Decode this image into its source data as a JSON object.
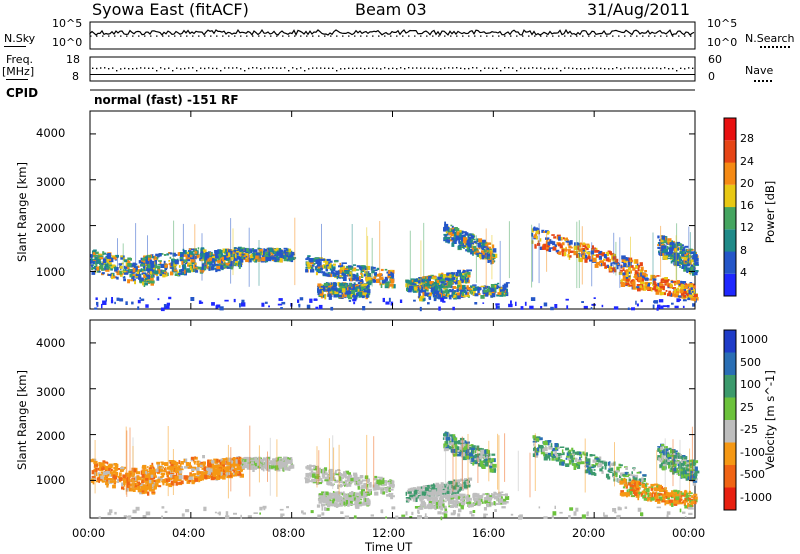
{
  "header": {
    "station": "Syowa East (fitACF)",
    "beam": "Beam 03",
    "date": "31/Aug/2011"
  },
  "noise_panel": {
    "left_label": "N.Sky",
    "right_label": "N.Search",
    "left_ticks": [
      "10^5",
      "10^0"
    ],
    "right_ticks": [
      "10^5",
      "10^0"
    ]
  },
  "freq_panel": {
    "left_label_line1": "Freq.",
    "left_label_line2": "[MHz]",
    "right_label": "Nave",
    "left_ticks": [
      "18",
      "8"
    ],
    "right_ticks": [
      "60",
      "0"
    ]
  },
  "cpid_panel": {
    "label": "CPID",
    "text": "normal (fast) -151 RF"
  },
  "chart_data": [
    {
      "type": "heatmap",
      "panel": "power",
      "ylabel": "Slant Range [km]",
      "yticks": [
        "1000",
        "2000",
        "3000",
        "4000"
      ],
      "ylim": [
        180,
        4500
      ],
      "xlim": [
        0,
        24
      ],
      "colorbar_label": "Power [dB]",
      "colorbar_ticks": [
        "4",
        "8",
        "12",
        "16",
        "20",
        "24",
        "28"
      ],
      "colorbar_colors": [
        "#1f28ff",
        "#2456c8",
        "#1f8a88",
        "#45a560",
        "#e8c814",
        "#f58a14",
        "#e64516",
        "#e81010"
      ]
    },
    {
      "type": "heatmap",
      "panel": "velocity",
      "ylabel": "Slant Range [km]",
      "yticks": [
        "1000",
        "2000",
        "3000",
        "4000"
      ],
      "ylim": [
        180,
        4500
      ],
      "xlim": [
        0,
        24
      ],
      "colorbar_label": "Velocity [m s^-1]",
      "colorbar_ticks": [
        "1000",
        "500",
        "100",
        "25",
        "-25",
        "-100",
        "-500",
        "-1000"
      ],
      "colorbar_colors": [
        "#1f3cc8",
        "#2a6eb4",
        "#3c9a6c",
        "#6cc23c",
        "#bebebe",
        "#f59814",
        "#f06414",
        "#e82010"
      ]
    }
  ],
  "xaxis": {
    "ticks": [
      "00:00",
      "04:00",
      "08:00",
      "12:00",
      "16:00",
      "20:00",
      "00:00"
    ],
    "label": "Time UT"
  }
}
